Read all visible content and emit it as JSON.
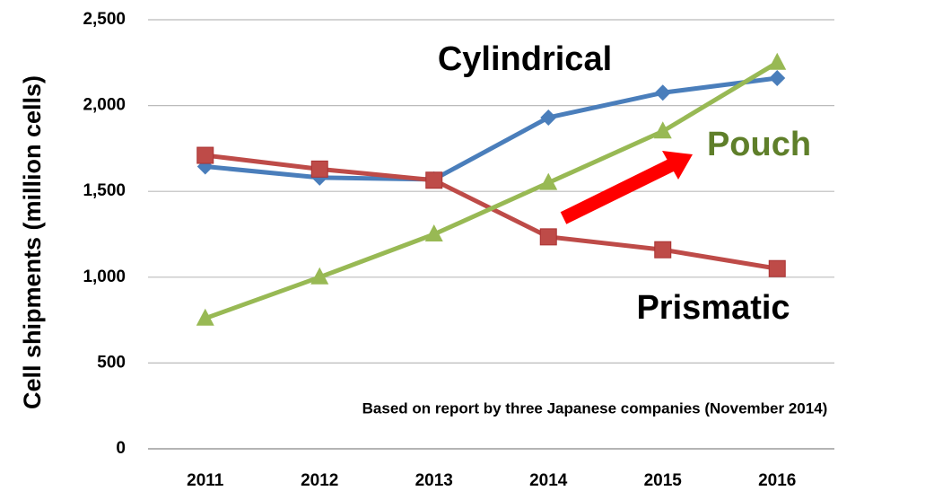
{
  "chart_data": {
    "type": "line",
    "y_label": "Cell shipments (million cells)",
    "annotation": "Based on report by three Japanese companies (November 2014)",
    "categories": [
      "2011",
      "2012",
      "2013",
      "2014",
      "2015",
      "2016"
    ],
    "series": [
      {
        "name": "Cylindrical",
        "color": "#4a7ebb",
        "marker": "diamond",
        "values": [
          1645,
          1580,
          1570,
          1930,
          2075,
          2160
        ]
      },
      {
        "name": "Prismatic",
        "color": "#be4b48",
        "marker": "square",
        "values": [
          1710,
          1630,
          1565,
          1235,
          1160,
          1050
        ]
      },
      {
        "name": "Pouch",
        "color": "#98b954",
        "marker": "triangle",
        "values": [
          760,
          1000,
          1250,
          1550,
          1850,
          2250
        ]
      }
    ],
    "ylim": [
      0,
      2500
    ],
    "yticks": [
      0,
      500,
      {
        "value": 1000,
        "label": "1,000"
      },
      {
        "value": 1500,
        "label": "1,500"
      },
      {
        "value": 2000,
        "label": "2,000"
      },
      {
        "value": 2500,
        "label": "2,500"
      }
    ],
    "grid": true
  }
}
